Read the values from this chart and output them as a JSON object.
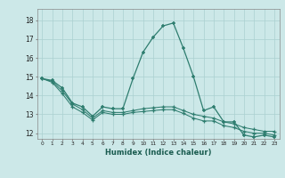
{
  "xlabel": "Humidex (Indice chaleur)",
  "bg_color": "#cce8e8",
  "line_color": "#2e7d6f",
  "grid_color": "#aad0d0",
  "xlim": [
    -0.5,
    23.5
  ],
  "ylim": [
    11.7,
    18.6
  ],
  "xticks": [
    0,
    1,
    2,
    3,
    4,
    5,
    6,
    7,
    8,
    9,
    10,
    11,
    12,
    13,
    14,
    15,
    16,
    17,
    18,
    19,
    20,
    21,
    22,
    23
  ],
  "yticks": [
    12,
    13,
    14,
    15,
    16,
    17,
    18
  ],
  "curve1_x": [
    0,
    1,
    2,
    3,
    4,
    5,
    6,
    7,
    8,
    9,
    10,
    11,
    12,
    13,
    14,
    15,
    16,
    17,
    18,
    19,
    20,
    21,
    22,
    23
  ],
  "curve1_y": [
    14.9,
    14.8,
    14.4,
    13.6,
    13.4,
    12.9,
    13.4,
    13.3,
    13.3,
    14.9,
    16.3,
    17.1,
    17.7,
    17.85,
    16.5,
    15.0,
    13.2,
    13.4,
    12.6,
    12.6,
    11.9,
    11.8,
    11.9,
    11.8
  ],
  "curve2_x": [
    0,
    1,
    2,
    3,
    4,
    5,
    6,
    7,
    8,
    9,
    10,
    11,
    12,
    13,
    14,
    15,
    16,
    17,
    18,
    19,
    20,
    21,
    22,
    23
  ],
  "curve2_y": [
    14.9,
    14.75,
    14.25,
    13.55,
    13.25,
    12.8,
    13.2,
    13.1,
    13.1,
    13.2,
    13.3,
    13.35,
    13.4,
    13.4,
    13.2,
    13.0,
    12.9,
    12.8,
    12.6,
    12.5,
    12.3,
    12.2,
    12.1,
    12.1
  ],
  "curve3_x": [
    0,
    1,
    2,
    3,
    4,
    5,
    6,
    7,
    8,
    9,
    10,
    11,
    12,
    13,
    14,
    15,
    16,
    17,
    18,
    19,
    20,
    21,
    22,
    23
  ],
  "curve3_y": [
    14.9,
    14.7,
    14.1,
    13.4,
    13.1,
    12.7,
    13.1,
    13.0,
    13.0,
    13.1,
    13.15,
    13.2,
    13.25,
    13.25,
    13.05,
    12.8,
    12.65,
    12.65,
    12.4,
    12.3,
    12.1,
    12.0,
    12.0,
    11.9
  ],
  "xtick_fontsize": 4.2,
  "ytick_fontsize": 5.5,
  "xlabel_fontsize": 6.0,
  "linewidth_main": 0.9,
  "linewidth_flat": 0.75,
  "markersize_main": 3.5,
  "markersize_flat": 3.0
}
